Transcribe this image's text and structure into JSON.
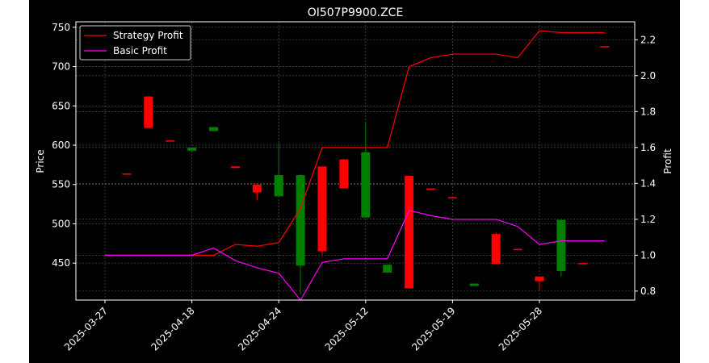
{
  "chart_data": {
    "type": "candlestick-with-lines",
    "title": "OI507P9900.ZCE",
    "ylabel_left": "Price",
    "ylabel_right": "Profit",
    "ylim_left": [
      403,
      757
    ],
    "ylim_right": [
      0.75,
      2.3
    ],
    "yticks_left": [
      "450",
      "500",
      "550",
      "600",
      "650",
      "700",
      "750"
    ],
    "yticks_right": [
      "0.8",
      "1.0",
      "1.2",
      "1.4",
      "1.6",
      "1.8",
      "2.0",
      "2.2"
    ],
    "x_tick_labels": [
      "2025-03-27",
      "2025-04-18",
      "2025-04-24",
      "2025-05-12",
      "2025-05-19",
      "2025-05-28"
    ],
    "x_tick_positions": [
      0,
      4,
      8,
      12,
      16,
      20
    ],
    "grid": true,
    "legend_position": "upper-left",
    "colors": {
      "up": "#008000",
      "down": "#ff0000",
      "strategy": "#ff0000",
      "basic": "#ff00ff",
      "grid": "#888888",
      "background": "#000000",
      "axes": "#ffffff"
    },
    "candles": [
      {
        "i": 0,
        "open": 730,
        "high": 745,
        "low": 728,
        "close": 745
      },
      {
        "i": 1,
        "open": 564,
        "high": 564,
        "low": 563,
        "close": 563
      },
      {
        "i": 2,
        "open": 662,
        "high": 662,
        "low": 622,
        "close": 622
      },
      {
        "i": 3,
        "open": 606,
        "high": 606,
        "low": 605,
        "close": 605
      },
      {
        "i": 4,
        "open": 593,
        "high": 597,
        "low": 593,
        "close": 597
      },
      {
        "i": 5,
        "open": 618,
        "high": 623,
        "low": 618,
        "close": 623
      },
      {
        "i": 6,
        "open": 573,
        "high": 573,
        "low": 571,
        "close": 571
      },
      {
        "i": 7,
        "open": 550,
        "high": 550,
        "low": 530,
        "close": 540
      },
      {
        "i": 8,
        "open": 535,
        "high": 603,
        "low": 535,
        "close": 562
      },
      {
        "i": 9,
        "open": 447,
        "high": 563,
        "low": 410,
        "close": 562
      },
      {
        "i": 10,
        "open": 573,
        "high": 573,
        "low": 460,
        "close": 465
      },
      {
        "i": 11,
        "open": 582,
        "high": 582,
        "low": 545,
        "close": 545
      },
      {
        "i": 12,
        "open": 508,
        "high": 630,
        "low": 508,
        "close": 591
      },
      {
        "i": 13,
        "open": 438,
        "high": 448,
        "low": 438,
        "close": 448
      },
      {
        "i": 14,
        "open": 561,
        "high": 561,
        "low": 418,
        "close": 418
      },
      {
        "i": 15,
        "open": 545,
        "high": 545,
        "low": 544,
        "close": 544
      },
      {
        "i": 16,
        "open": 534,
        "high": 534,
        "low": 533,
        "close": 533
      },
      {
        "i": 17,
        "open": 421,
        "high": 424,
        "low": 421,
        "close": 424
      },
      {
        "i": 18,
        "open": 487,
        "high": 489,
        "low": 449,
        "close": 449
      },
      {
        "i": 19,
        "open": 468,
        "high": 468,
        "low": 467,
        "close": 467
      },
      {
        "i": 20,
        "open": 433,
        "high": 433,
        "low": 416,
        "close": 427
      },
      {
        "i": 21,
        "open": 440,
        "high": 505,
        "low": 433,
        "close": 505
      },
      {
        "i": 22,
        "open": 450,
        "high": 450,
        "low": 449,
        "close": 449
      },
      {
        "i": 23,
        "open": 726,
        "high": 726,
        "low": 725,
        "close": 725
      }
    ],
    "series": [
      {
        "name": "Strategy Profit",
        "color": "#ff0000",
        "x": [
          0,
          1,
          2,
          3,
          4,
          5,
          6,
          7,
          8,
          9,
          10,
          11,
          12,
          13,
          14,
          15,
          16,
          17,
          18,
          19,
          20,
          21,
          22,
          23
        ],
        "values": [
          1.0,
          1.0,
          1.0,
          1.0,
          1.0,
          1.0,
          1.06,
          1.05,
          1.07,
          1.26,
          1.6,
          1.6,
          1.6,
          1.6,
          2.05,
          2.1,
          2.12,
          2.12,
          2.12,
          2.1,
          2.25,
          2.24,
          2.24,
          2.24
        ]
      },
      {
        "name": "Basic Profit",
        "color": "#ff00ff",
        "x": [
          0,
          1,
          2,
          3,
          4,
          5,
          6,
          7,
          8,
          9,
          10,
          11,
          12,
          13,
          14,
          15,
          16,
          17,
          18,
          19,
          20,
          21,
          22,
          23
        ],
        "values": [
          1.0,
          1.0,
          1.0,
          1.0,
          1.0,
          1.04,
          0.97,
          0.93,
          0.9,
          0.75,
          0.96,
          0.98,
          0.98,
          0.98,
          1.25,
          1.22,
          1.2,
          1.2,
          1.2,
          1.16,
          1.06,
          1.08,
          1.08,
          1.08
        ]
      }
    ]
  }
}
